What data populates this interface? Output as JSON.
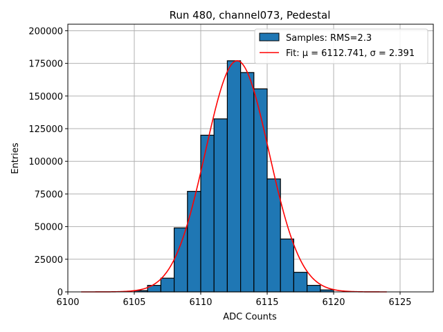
{
  "chart_data": {
    "type": "bar",
    "title": "Run 480, channel073, Pedestal",
    "xlabel": "ADC Counts",
    "ylabel": "Entries",
    "xlim": [
      6100,
      6127.5
    ],
    "ylim": [
      0,
      205000
    ],
    "grid": true,
    "x_ticks": [
      6100,
      6105,
      6110,
      6115,
      6120,
      6125
    ],
    "y_ticks": [
      0,
      25000,
      50000,
      75000,
      100000,
      125000,
      150000,
      175000,
      200000
    ],
    "bin_width": 1,
    "bins": [
      {
        "left": 6105,
        "value": 1000
      },
      {
        "left": 6106,
        "value": 5000
      },
      {
        "left": 6107,
        "value": 10500
      },
      {
        "left": 6108,
        "value": 49000
      },
      {
        "left": 6109,
        "value": 77000
      },
      {
        "left": 6110,
        "value": 120000
      },
      {
        "left": 6111,
        "value": 132500
      },
      {
        "left": 6112,
        "value": 177000
      },
      {
        "left": 6113,
        "value": 168000
      },
      {
        "left": 6114,
        "value": 155500
      },
      {
        "left": 6115,
        "value": 86500
      },
      {
        "left": 6116,
        "value": 40500
      },
      {
        "left": 6117,
        "value": 15000
      },
      {
        "left": 6118,
        "value": 5000
      },
      {
        "left": 6119,
        "value": 1500
      }
    ],
    "fit": {
      "type": "gaussian",
      "mu": 6112.741,
      "sigma": 2.391,
      "amplitude": 177000,
      "x_range": [
        6101,
        6124
      ]
    },
    "series": [
      {
        "name": "Samples: RMS=2.3",
        "kind": "histogram"
      },
      {
        "name": "Fit: μ = 6112.741, σ = 2.391",
        "kind": "line"
      }
    ],
    "legend_position": "top-right"
  },
  "colors": {
    "bar_fill": "#1f77b4",
    "bar_edge": "#000000",
    "fit_line": "#ff0000",
    "grid": "#b0b0b0"
  }
}
